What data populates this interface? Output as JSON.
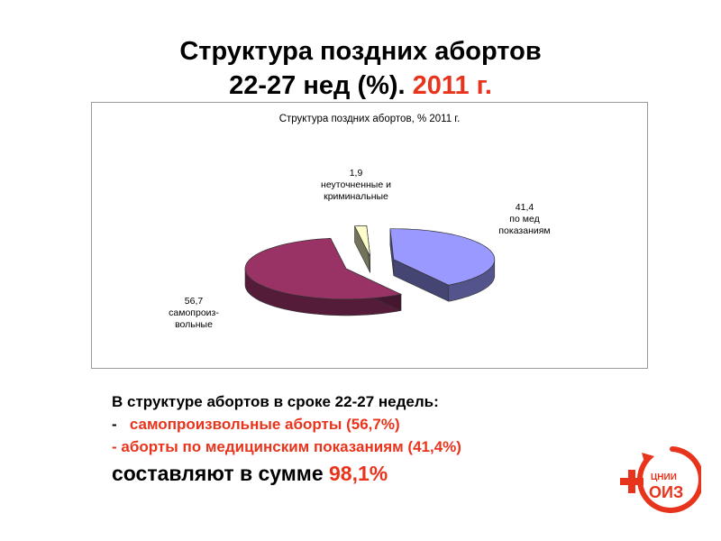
{
  "title": {
    "line1": "Структура поздних  абортов",
    "line2_black": "22-27 нед (%).",
    "line2_red": "2011 г."
  },
  "colors": {
    "accent_red": "#e8341c",
    "slice_med": "#9999ff",
    "slice_spont": "#993366",
    "slice_other": "#ffffcc"
  },
  "chart_data": {
    "type": "pie",
    "title": "Структура поздних абортов, %  2011 г.",
    "style": "3d-exploded",
    "slices": [
      {
        "value": 41.4,
        "label": "по мед показаниям",
        "color": "#9999ff"
      },
      {
        "value": 56.7,
        "label": "самопроиз-вольные",
        "color": "#993366"
      },
      {
        "value": 1.9,
        "label": "неуточненные и криминальные",
        "color": "#ffffcc"
      }
    ]
  },
  "slice_labels": {
    "med": {
      "value": "41,4",
      "line1": "по мед",
      "line2": "показаниям"
    },
    "spont": {
      "value": "56,7",
      "line1": "самопроиз-",
      "line2": "вольные"
    },
    "other": {
      "value": "1,9",
      "line1": "неуточненные и",
      "line2": "криминальные"
    }
  },
  "summary": {
    "intro": "В структуре абортов в сроке 22-27 недель:",
    "item1_dash": "-",
    "item1_text": "самопроизвольные  аборты (56,7%)",
    "item2_text": "-  аборты по медицинским показаниям (41,4%)",
    "total_text": "составляют в  сумме",
    "total_value": "98,1%"
  },
  "logo": {
    "text_top": "ЦНИИ",
    "text_bottom": "ОИЗ",
    "icon": "red-cross-circle-logo"
  }
}
